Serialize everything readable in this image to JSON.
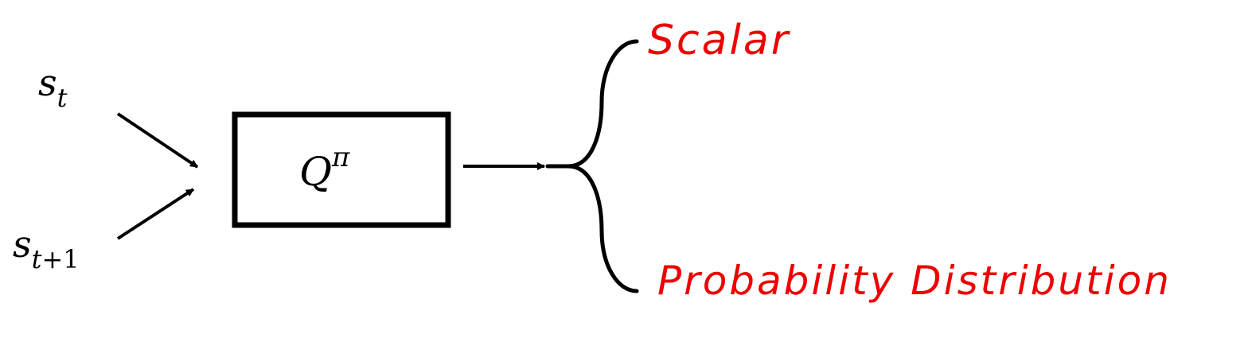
{
  "inputs": {
    "state_current": {
      "symbol": "s",
      "subscript": "t"
    },
    "state_next": {
      "symbol": "s",
      "subscript_var": "t",
      "subscript_rest": "+1"
    }
  },
  "function_box": {
    "symbol": "Q",
    "superscript": "π"
  },
  "outputs": {
    "scalar": "Scalar",
    "distribution": "Probability Distribution"
  },
  "colors": {
    "stroke": "#000000",
    "output_text": "#ee0000"
  }
}
